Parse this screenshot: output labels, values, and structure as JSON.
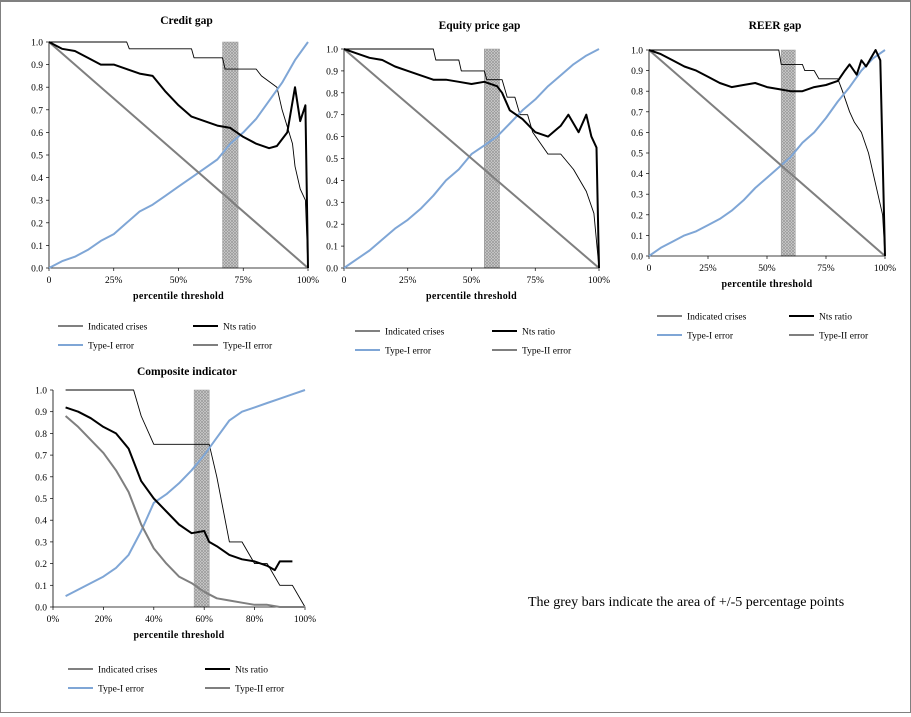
{
  "note": "The grey bars indicate the area of +/-5 percentage points",
  "colors": {
    "indicated_crises": "#000000",
    "nts_ratio": "#000000",
    "type1_error": "#7fa6d6",
    "type2_error": "#7f7f7f",
    "shade_band": "#9a9a9a"
  },
  "legend_labels": [
    "Indicated crises",
    "Nts ratio",
    "Type-I error",
    "Type-II error"
  ],
  "chart_data": [
    {
      "type": "line",
      "title": "Credit gap",
      "xlabel": "percentile threshold",
      "ylabel": "",
      "xlim": [
        0,
        100
      ],
      "ylim": [
        0,
        1
      ],
      "x_ticks": [
        "0",
        "25%",
        "50%",
        "75%",
        "100%"
      ],
      "y_ticks": [
        "0.0",
        "0.1",
        "0.2",
        "0.3",
        "0.4",
        "0.5",
        "0.6",
        "0.7",
        "0.8",
        "0.9",
        "1.0"
      ],
      "shaded_band": [
        67,
        73
      ],
      "series": [
        {
          "name": "Indicated crises",
          "x": [
            0,
            30,
            31,
            55,
            56,
            67,
            68,
            80,
            82,
            88,
            90,
            94,
            95,
            97,
            99,
            100
          ],
          "y": [
            1.0,
            1.0,
            0.97,
            0.97,
            0.93,
            0.93,
            0.88,
            0.88,
            0.85,
            0.8,
            0.7,
            0.55,
            0.45,
            0.35,
            0.3,
            0.0
          ]
        },
        {
          "name": "Nts ratio",
          "x": [
            0,
            5,
            10,
            15,
            20,
            25,
            30,
            35,
            40,
            45,
            50,
            55,
            60,
            65,
            70,
            75,
            80,
            85,
            88,
            92,
            95,
            97,
            99,
            100
          ],
          "y": [
            1.0,
            0.97,
            0.96,
            0.93,
            0.9,
            0.9,
            0.88,
            0.86,
            0.85,
            0.78,
            0.72,
            0.67,
            0.65,
            0.63,
            0.62,
            0.58,
            0.55,
            0.53,
            0.54,
            0.6,
            0.8,
            0.65,
            0.72,
            0.0
          ]
        },
        {
          "name": "Type-I error",
          "x": [
            0,
            5,
            10,
            15,
            20,
            25,
            30,
            35,
            40,
            45,
            50,
            55,
            60,
            65,
            70,
            75,
            80,
            85,
            90,
            95,
            100
          ],
          "y": [
            0.0,
            0.03,
            0.05,
            0.08,
            0.12,
            0.15,
            0.2,
            0.25,
            0.28,
            0.32,
            0.36,
            0.4,
            0.44,
            0.48,
            0.55,
            0.6,
            0.66,
            0.74,
            0.82,
            0.92,
            1.0
          ]
        },
        {
          "name": "Type-II error",
          "x": [
            0,
            100
          ],
          "y": [
            1.0,
            0.0
          ]
        }
      ]
    },
    {
      "type": "line",
      "title": "Equity price gap",
      "xlabel": "percentile threshold",
      "ylabel": "",
      "xlim": [
        0,
        100
      ],
      "ylim": [
        0,
        1
      ],
      "x_ticks": [
        "0",
        "25%",
        "50%",
        "75%",
        "100%"
      ],
      "y_ticks": [
        "0.0",
        "0.1",
        "0.2",
        "0.3",
        "0.4",
        "0.5",
        "0.6",
        "0.7",
        "0.8",
        "0.9",
        "1.0"
      ],
      "shaded_band": [
        55,
        61
      ],
      "series": [
        {
          "name": "Indicated crises",
          "x": [
            0,
            35,
            36,
            45,
            46,
            55,
            56,
            62,
            64,
            67,
            69,
            72,
            74,
            80,
            85,
            90,
            95,
            98,
            100
          ],
          "y": [
            1.0,
            1.0,
            0.95,
            0.95,
            0.9,
            0.9,
            0.86,
            0.86,
            0.78,
            0.78,
            0.7,
            0.7,
            0.62,
            0.52,
            0.52,
            0.45,
            0.35,
            0.25,
            0.0
          ]
        },
        {
          "name": "Nts ratio",
          "x": [
            0,
            5,
            10,
            15,
            20,
            25,
            30,
            35,
            40,
            45,
            50,
            55,
            60,
            62,
            65,
            70,
            75,
            80,
            85,
            88,
            92,
            95,
            97,
            99,
            100
          ],
          "y": [
            1.0,
            0.98,
            0.96,
            0.95,
            0.92,
            0.9,
            0.88,
            0.86,
            0.86,
            0.85,
            0.84,
            0.85,
            0.83,
            0.8,
            0.72,
            0.68,
            0.62,
            0.6,
            0.65,
            0.7,
            0.62,
            0.7,
            0.6,
            0.55,
            0.0
          ]
        },
        {
          "name": "Type-I error",
          "x": [
            0,
            5,
            10,
            15,
            20,
            25,
            30,
            35,
            40,
            45,
            50,
            55,
            60,
            65,
            70,
            75,
            80,
            85,
            90,
            95,
            100
          ],
          "y": [
            0.0,
            0.04,
            0.08,
            0.13,
            0.18,
            0.22,
            0.27,
            0.33,
            0.4,
            0.45,
            0.52,
            0.56,
            0.6,
            0.66,
            0.72,
            0.77,
            0.83,
            0.88,
            0.93,
            0.97,
            1.0
          ]
        },
        {
          "name": "Type-II error",
          "x": [
            0,
            100
          ],
          "y": [
            1.0,
            0.0
          ]
        }
      ]
    },
    {
      "type": "line",
      "title": "REER gap",
      "xlabel": "percentile threshold",
      "ylabel": "",
      "xlim": [
        0,
        100
      ],
      "ylim": [
        0,
        1
      ],
      "x_ticks": [
        "0",
        "25%",
        "50%",
        "75%",
        "100%"
      ],
      "y_ticks": [
        "0.0",
        "0.1",
        "0.2",
        "0.3",
        "0.4",
        "0.5",
        "0.6",
        "0.7",
        "0.8",
        "0.9",
        "1.0"
      ],
      "shaded_band": [
        56,
        62
      ],
      "series": [
        {
          "name": "Indicated crises",
          "x": [
            0,
            55,
            56,
            65,
            66,
            70,
            72,
            80,
            82,
            85,
            87,
            90,
            93,
            95,
            97,
            99,
            100
          ],
          "y": [
            1.0,
            1.0,
            0.93,
            0.93,
            0.9,
            0.9,
            0.86,
            0.86,
            0.8,
            0.7,
            0.65,
            0.6,
            0.5,
            0.4,
            0.3,
            0.2,
            0.0
          ]
        },
        {
          "name": "Nts ratio",
          "x": [
            0,
            5,
            10,
            15,
            20,
            25,
            30,
            35,
            40,
            45,
            50,
            55,
            60,
            65,
            70,
            75,
            80,
            83,
            85,
            88,
            90,
            92,
            94,
            96,
            98,
            100
          ],
          "y": [
            1.0,
            0.98,
            0.95,
            0.92,
            0.9,
            0.87,
            0.84,
            0.82,
            0.83,
            0.84,
            0.82,
            0.81,
            0.8,
            0.8,
            0.82,
            0.83,
            0.85,
            0.9,
            0.93,
            0.88,
            0.95,
            0.92,
            0.96,
            1.0,
            0.95,
            0.0
          ]
        },
        {
          "name": "Type-I error",
          "x": [
            0,
            5,
            10,
            15,
            20,
            25,
            30,
            35,
            40,
            45,
            50,
            55,
            60,
            65,
            70,
            75,
            80,
            85,
            90,
            95,
            100
          ],
          "y": [
            0.0,
            0.04,
            0.07,
            0.1,
            0.12,
            0.15,
            0.18,
            0.22,
            0.27,
            0.33,
            0.38,
            0.43,
            0.48,
            0.55,
            0.6,
            0.67,
            0.75,
            0.82,
            0.9,
            0.96,
            1.0
          ]
        },
        {
          "name": "Type-II error",
          "x": [
            0,
            100
          ],
          "y": [
            1.0,
            0.0
          ]
        }
      ]
    },
    {
      "type": "line",
      "title": "Composite indicator",
      "xlabel": "percentile threshold",
      "ylabel": "",
      "xlim": [
        0,
        100
      ],
      "ylim": [
        0,
        1
      ],
      "x_ticks": [
        "0%",
        "20%",
        "40%",
        "60%",
        "80%",
        "100%"
      ],
      "y_ticks": [
        "0.0",
        "0.1",
        "0.2",
        "0.3",
        "0.4",
        "0.5",
        "0.6",
        "0.7",
        "0.8",
        "0.9",
        "1.0"
      ],
      "shaded_band": [
        56,
        62
      ],
      "series": [
        {
          "name": "Indicated crises",
          "x": [
            5,
            32,
            35,
            40,
            45,
            50,
            55,
            60,
            62,
            65,
            70,
            75,
            80,
            85,
            90,
            95,
            100
          ],
          "y": [
            1.0,
            1.0,
            0.88,
            0.75,
            0.75,
            0.75,
            0.75,
            0.75,
            0.75,
            0.6,
            0.3,
            0.3,
            0.2,
            0.2,
            0.1,
            0.1,
            0.0
          ]
        },
        {
          "name": "Nts ratio",
          "x": [
            5,
            10,
            15,
            20,
            25,
            30,
            35,
            40,
            45,
            50,
            55,
            60,
            62,
            65,
            70,
            75,
            80,
            85,
            88,
            90,
            95
          ],
          "y": [
            0.92,
            0.9,
            0.87,
            0.83,
            0.8,
            0.73,
            0.58,
            0.5,
            0.44,
            0.38,
            0.34,
            0.35,
            0.3,
            0.28,
            0.24,
            0.22,
            0.21,
            0.19,
            0.17,
            0.21,
            0.21
          ]
        },
        {
          "name": "Type-I error",
          "x": [
            5,
            10,
            15,
            20,
            25,
            30,
            35,
            40,
            45,
            50,
            55,
            60,
            65,
            70,
            75,
            80,
            85,
            90,
            95,
            100
          ],
          "y": [
            0.05,
            0.08,
            0.11,
            0.14,
            0.18,
            0.24,
            0.35,
            0.48,
            0.52,
            0.57,
            0.63,
            0.7,
            0.78,
            0.86,
            0.9,
            0.92,
            0.94,
            0.96,
            0.98,
            1.0
          ]
        },
        {
          "name": "Type-II error",
          "x": [
            5,
            10,
            15,
            20,
            25,
            30,
            35,
            40,
            45,
            50,
            55,
            60,
            65,
            70,
            75,
            80,
            85,
            90,
            95,
            100
          ],
          "y": [
            0.88,
            0.83,
            0.77,
            0.71,
            0.63,
            0.53,
            0.38,
            0.27,
            0.2,
            0.14,
            0.11,
            0.07,
            0.04,
            0.03,
            0.02,
            0.01,
            0.01,
            0.0,
            0.0,
            0.0
          ]
        }
      ]
    }
  ]
}
